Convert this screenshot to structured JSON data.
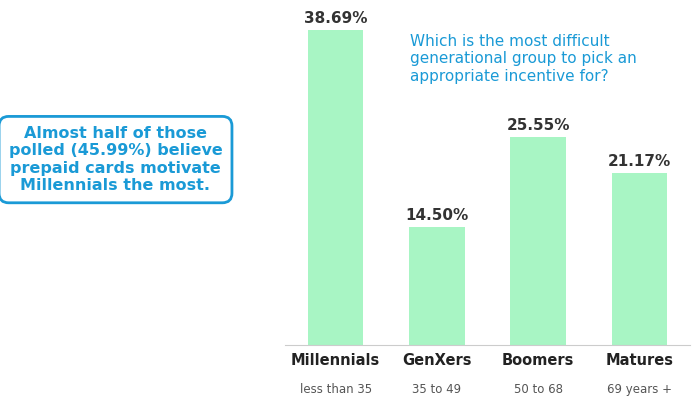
{
  "chart_data": {
    "type": "bar",
    "title": "Which is the most difficult generational group to pick an appropriate incentive for?",
    "categories": [
      "Millennials",
      "GenXers",
      "Boomers",
      "Matures"
    ],
    "age_ranges": [
      "less than 35",
      "35 to 49",
      "50 to 68",
      "69 years +"
    ],
    "values": [
      38.69,
      14.5,
      25.55,
      21.17
    ],
    "value_labels": [
      "38.69%",
      "14.50%",
      "25.55%",
      "21.17%"
    ],
    "data_labels": true,
    "color": "#a8f5c4",
    "ylim": [
      0,
      40
    ],
    "tick_labels": "x",
    "grid": false,
    "annotations": [
      "Almost half of those polled (45.99%) believe prepaid cards motivate Millennials the most."
    ]
  }
}
